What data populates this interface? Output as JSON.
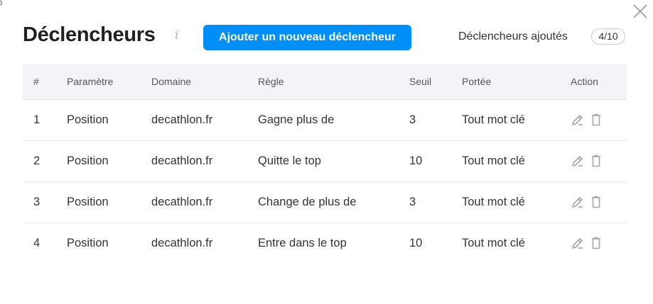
{
  "header": {
    "title": "Déclencheurs",
    "info_icon": "info-icon",
    "add_button": "Ajouter un nouveau déclencheur",
    "count_label": "Déclencheurs ajoutés",
    "count": "4/10"
  },
  "colors": {
    "accent": "#008ff8",
    "header_bg": "#f3f4f8"
  },
  "table": {
    "columns": [
      "#",
      "Paramètre",
      "Domaine",
      "Règle",
      "Seuil",
      "Portée",
      "Action"
    ],
    "rows": [
      {
        "num": "1",
        "param": "Position",
        "domain": "decathlon.fr",
        "rule": "Gagne plus de",
        "threshold": "3",
        "scope": "Tout mot clé"
      },
      {
        "num": "2",
        "param": "Position",
        "domain": "decathlon.fr",
        "rule": "Quitte le top",
        "threshold": "10",
        "scope": "Tout mot clé"
      },
      {
        "num": "3",
        "param": "Position",
        "domain": "decathlon.fr",
        "rule": "Change de plus de",
        "threshold": "3",
        "scope": "Tout mot clé"
      },
      {
        "num": "4",
        "param": "Position",
        "domain": "decathlon.fr",
        "rule": "Entre dans le top",
        "threshold": "10",
        "scope": "Tout mot clé"
      }
    ]
  }
}
